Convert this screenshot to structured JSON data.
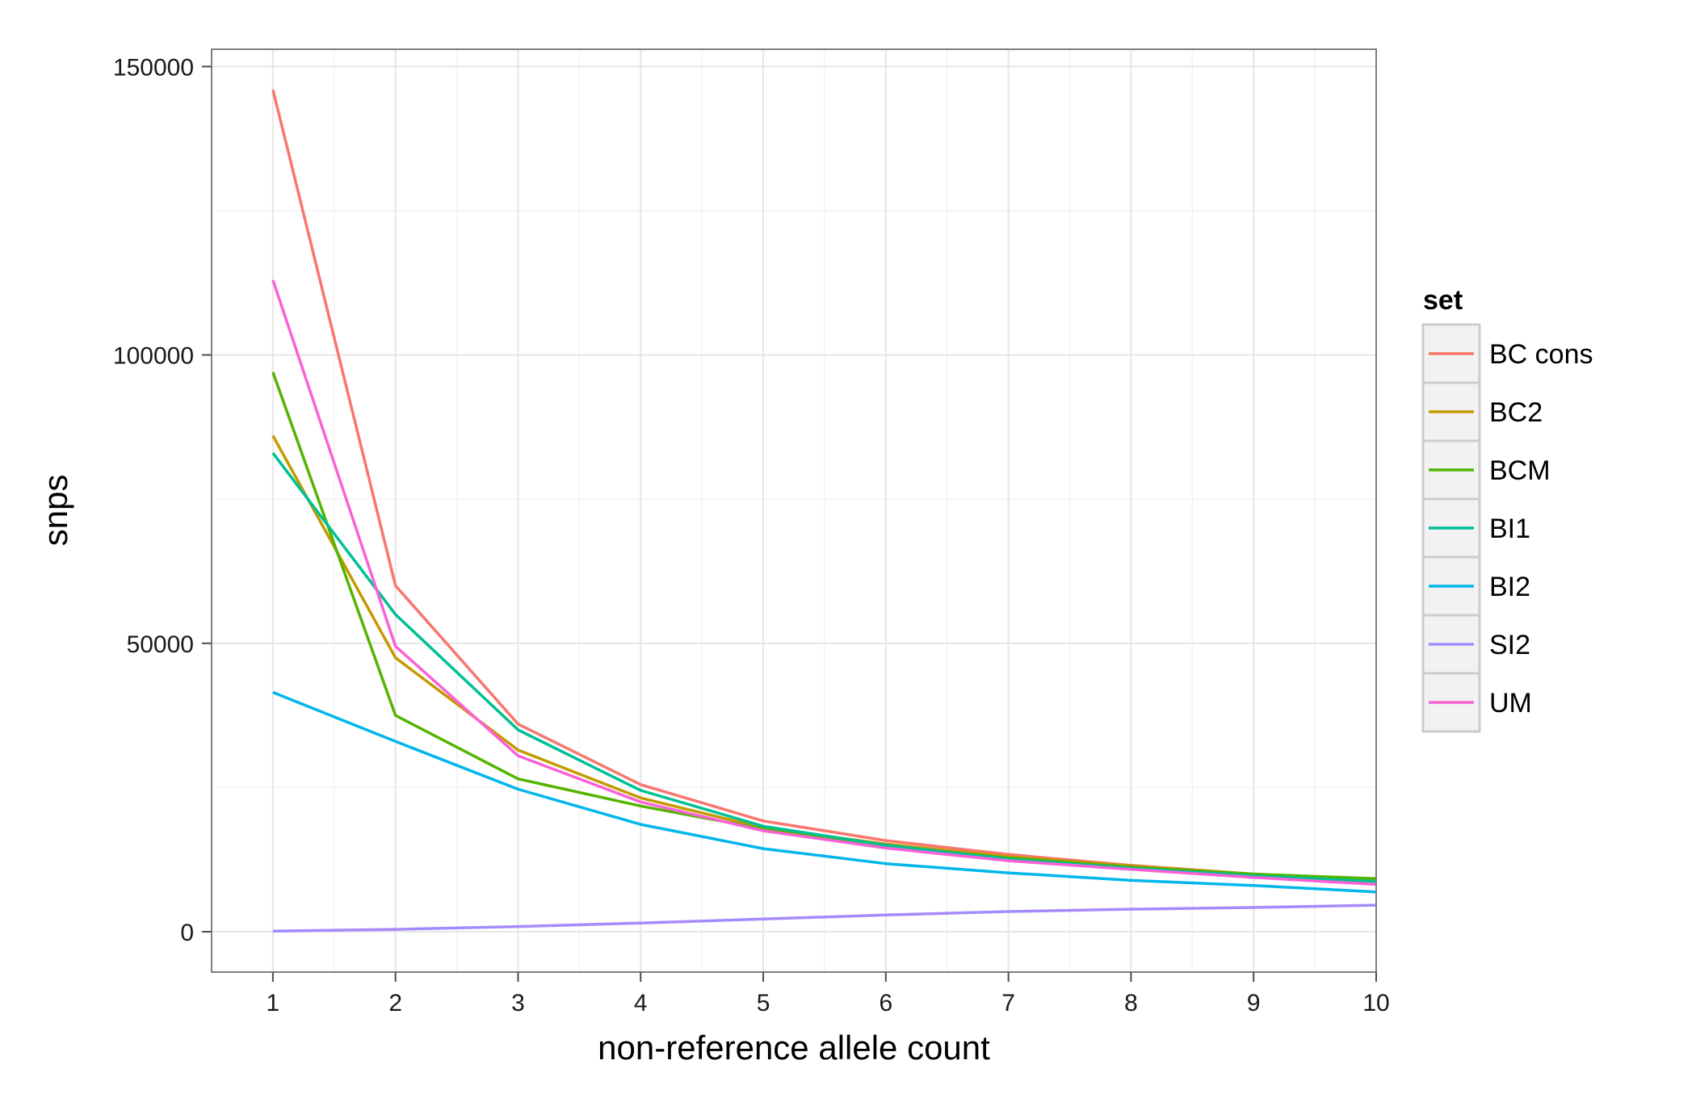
{
  "chart_data": {
    "type": "line",
    "xlabel": "non-reference allele count",
    "ylabel": "snps",
    "x": [
      1,
      2,
      3,
      4,
      5,
      6,
      7,
      8,
      9,
      10
    ],
    "xlim": [
      0.5,
      10
    ],
    "ylim": [
      -7000,
      153000
    ],
    "x_ticks": [
      1,
      2,
      3,
      4,
      5,
      6,
      7,
      8,
      9,
      10
    ],
    "y_ticks": [
      0,
      50000,
      100000,
      150000
    ],
    "grid": true,
    "legend": {
      "title": "set",
      "position": "right"
    },
    "series": [
      {
        "name": "BC cons",
        "color": "#F8766D",
        "values": [
          146000,
          60000,
          36000,
          25500,
          19200,
          15800,
          13400,
          11500,
          10000,
          8800
        ]
      },
      {
        "name": "BC2",
        "color": "#C49A00",
        "values": [
          86000,
          47500,
          31500,
          23200,
          18000,
          15200,
          13000,
          11400,
          10000,
          9000
        ]
      },
      {
        "name": "BCM",
        "color": "#53B400",
        "values": [
          97000,
          37500,
          26500,
          21800,
          17800,
          14800,
          12800,
          11200,
          10000,
          9200
        ]
      },
      {
        "name": "BI1",
        "color": "#00C094",
        "values": [
          83000,
          55000,
          35000,
          24500,
          18300,
          15000,
          12600,
          11000,
          9700,
          8700
        ]
      },
      {
        "name": "BI2",
        "color": "#00B6EB",
        "values": [
          41500,
          33000,
          24700,
          18600,
          14400,
          11800,
          10200,
          8900,
          8000,
          6900
        ]
      },
      {
        "name": "SI2",
        "color": "#A58AFF",
        "values": [
          100,
          400,
          900,
          1500,
          2200,
          2900,
          3500,
          3900,
          4200,
          4600
        ]
      },
      {
        "name": "UM",
        "color": "#FB61D7",
        "values": [
          113000,
          49500,
          30500,
          22500,
          17500,
          14500,
          12300,
          10800,
          9400,
          8200
        ]
      }
    ]
  }
}
